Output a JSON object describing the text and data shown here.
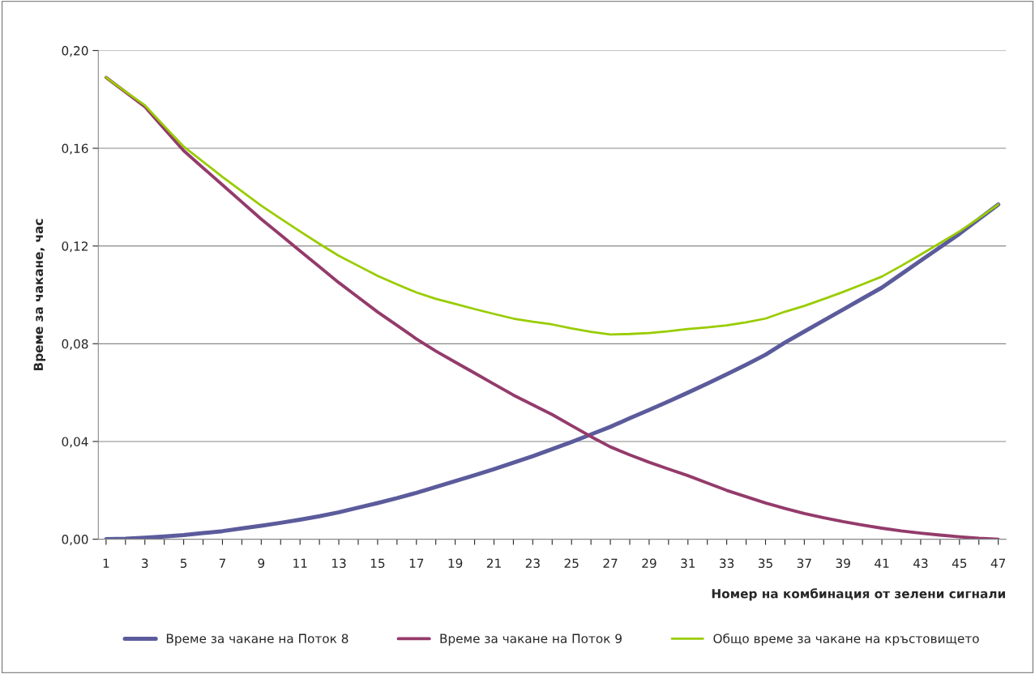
{
  "chart_data": {
    "type": "line",
    "xlabel": "Номер на комбинация от зелени сигнали",
    "ylabel": "Време за чакане, час",
    "categories": [
      "1",
      null,
      "3",
      null,
      "5",
      null,
      "7",
      null,
      "9",
      null,
      "11",
      null,
      "13",
      null,
      "15",
      null,
      "17",
      null,
      "19",
      null,
      "21",
      null,
      "23",
      null,
      "25",
      null,
      "27",
      null,
      "29",
      null,
      "31",
      null,
      "33",
      null,
      "35",
      null,
      "37",
      null,
      "39",
      null,
      "41",
      null,
      "43",
      null,
      "45",
      null,
      "47"
    ],
    "ylim": [
      0,
      0.2
    ],
    "yticks": [
      {
        "value": 0,
        "label": "0,00"
      },
      {
        "value": 0.04,
        "label": "0,04"
      },
      {
        "value": 0.08,
        "label": "0,08"
      },
      {
        "value": 0.12,
        "label": "0,12"
      },
      {
        "value": 0.16,
        "label": "0,16"
      },
      {
        "value": 0.2,
        "label": "0,20"
      }
    ],
    "grid": "y",
    "legend": "bottom",
    "marker": "none",
    "line_style": "solid",
    "series": [
      {
        "name": "Време за чакане на Поток 8",
        "color": "#5b5b9c",
        "values": [
          0,
          0.0002,
          0.0006,
          0.0011,
          0.0017,
          0.0025,
          0.0033,
          0.0044,
          0.0055,
          0.0067,
          0.008,
          0.0094,
          0.011,
          0.0129,
          0.0148,
          0.0168,
          0.019,
          0.0214,
          0.0238,
          0.0262,
          0.0287,
          0.0313,
          0.034,
          0.0369,
          0.0398,
          0.0429,
          0.046,
          0.0495,
          0.0529,
          0.0564,
          0.06,
          0.0637,
          0.0675,
          0.0714,
          0.0755,
          0.0805,
          0.085,
          0.0895,
          0.094,
          0.0985,
          0.103,
          0.1085,
          0.114,
          0.1195,
          0.125,
          0.131,
          0.137
        ]
      },
      {
        "name": "Време за чакане на Поток 9",
        "color": "#943b6b",
        "values": [
          0.189,
          0.183,
          0.177,
          0.168,
          0.159,
          0.152,
          0.145,
          0.138,
          0.131,
          0.1245,
          0.118,
          0.1115,
          0.105,
          0.099,
          0.093,
          0.0875,
          0.082,
          0.077,
          0.0725,
          0.068,
          0.0635,
          0.059,
          0.055,
          0.051,
          0.0465,
          0.042,
          0.0378,
          0.0345,
          0.0315,
          0.0287,
          0.026,
          0.023,
          0.02,
          0.0174,
          0.0148,
          0.0126,
          0.0105,
          0.0088,
          0.0072,
          0.0058,
          0.0045,
          0.0034,
          0.0025,
          0.0017,
          0.001,
          0.0004,
          0
        ]
      },
      {
        "name": "Общо време за чакане на кръстовището",
        "color": "#99cc00",
        "values": [
          0.189,
          0.1832,
          0.1776,
          0.1691,
          0.1607,
          0.1545,
          0.1483,
          0.1424,
          0.1365,
          0.1312,
          0.126,
          0.1209,
          0.116,
          0.1119,
          0.1078,
          0.1043,
          0.101,
          0.0984,
          0.0963,
          0.0942,
          0.0922,
          0.0903,
          0.089,
          0.0879,
          0.0863,
          0.0849,
          0.0838,
          0.084,
          0.0844,
          0.0851,
          0.086,
          0.0867,
          0.0875,
          0.0888,
          0.0903,
          0.0931,
          0.0955,
          0.0983,
          0.1012,
          0.1043,
          0.1075,
          0.1119,
          0.1165,
          0.1212,
          0.126,
          0.1314,
          0.137
        ]
      }
    ]
  }
}
